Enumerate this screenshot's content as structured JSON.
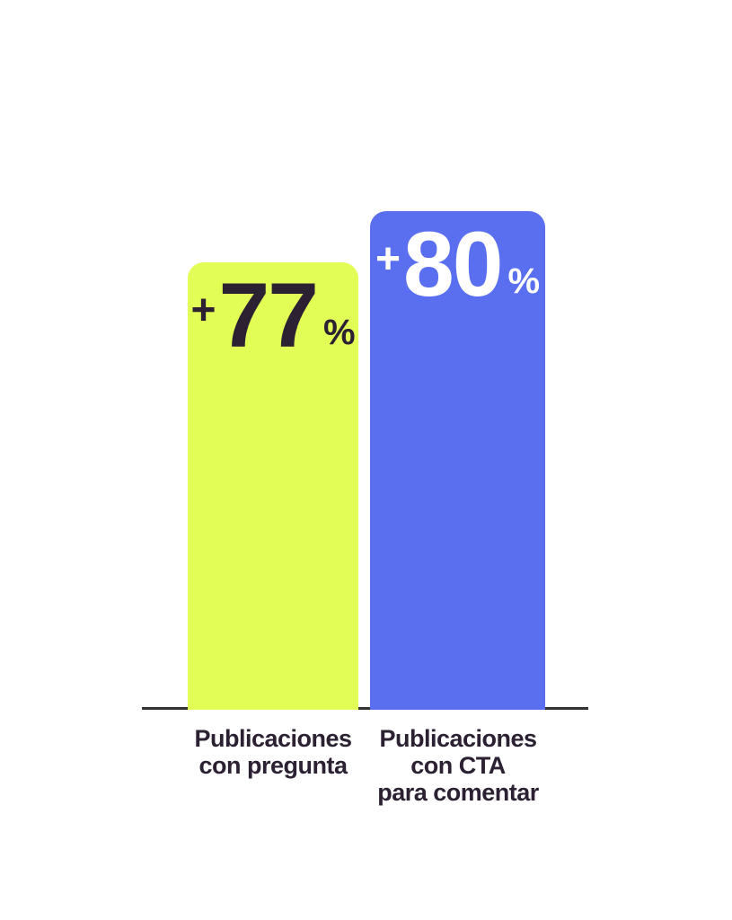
{
  "chart_data": {
    "type": "bar",
    "title": "",
    "categories": [
      "Publicaciones con pregunta",
      "Publicaciones con CTA para comentar"
    ],
    "values": [
      77,
      80
    ],
    "value_labels": [
      "+77%",
      "+80%"
    ],
    "value_prefix": "+",
    "value_suffix": "%",
    "bar_colors": [
      "#E2FD55",
      "#5A6FF0"
    ],
    "value_text_colors": [
      "#2B2132",
      "#FFFFFF"
    ],
    "legend_position": "none",
    "grid": false,
    "axis": "single dark horizontal baseline under bars"
  },
  "bars": [
    {
      "plus": "+",
      "value": "77",
      "percent": "%",
      "label": "Publicaciones\ncon pregunta",
      "color": "#E2FD55",
      "text_color": "#2B2132"
    },
    {
      "plus": "+",
      "value": "80",
      "percent": "%",
      "label": "Publicaciones\ncon CTA\npara comentar",
      "color": "#5A6FF0",
      "text_color": "#FFFFFF"
    }
  ],
  "colors": {
    "background": "#FFFFFF",
    "baseline": "#333333",
    "label_text": "#2B2132"
  }
}
